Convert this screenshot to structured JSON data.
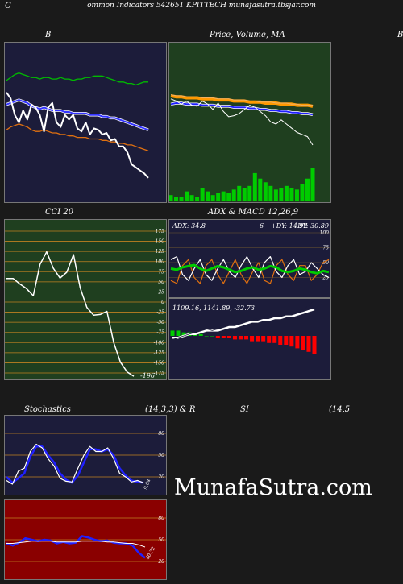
{
  "header": {
    "prefix": "C",
    "text": "ommon  Indicators 542651 KPITTECH munafasutra.tbsjar.com"
  },
  "panels": {
    "bollinger": {
      "title": "B"
    },
    "price_ma": {
      "title": "Price,  Volume,  MA"
    },
    "far_right": {
      "title": "B"
    },
    "cci": {
      "title": "CCI 20"
    },
    "adx_macd": {
      "title": "ADX  & MACD 12,26,9"
    },
    "stochastics": {
      "title": "Stochastics",
      "params": "(14,3,3) & R"
    },
    "rsi": {
      "title": "SI",
      "params": "(14,5"
    }
  },
  "watermark": "MunafaSutra.com",
  "colors": {
    "navy_bg": "#1c1c3a",
    "green_bg": "#1f3f1f",
    "red_bg": "#8a0000",
    "orange": "#e08020",
    "blue": "#1a1aff",
    "bright_green": "#00cc00"
  },
  "chart_data": [
    {
      "type": "line",
      "name": "bollinger",
      "series": [
        {
          "values": [
            78,
            80,
            82,
            83,
            82,
            81,
            80,
            80,
            79,
            80,
            80,
            79,
            79,
            80,
            79,
            79,
            78,
            79,
            79,
            80,
            80,
            81,
            81,
            81,
            80,
            79,
            78,
            77,
            77,
            76,
            76,
            75,
            76,
            77,
            77
          ]
        },
        {
          "values": [
            62,
            63,
            64,
            65,
            64,
            63,
            61,
            60,
            59,
            60,
            59,
            58,
            58,
            58,
            57,
            57,
            56,
            56,
            56,
            56,
            55,
            55,
            55,
            54,
            54,
            53,
            53,
            52,
            51,
            50,
            49,
            48,
            47,
            46,
            45
          ]
        },
        {
          "values": [
            45,
            47,
            48,
            49,
            48,
            47,
            45,
            44,
            44,
            45,
            44,
            43,
            43,
            42,
            42,
            41,
            41,
            40,
            40,
            40,
            39,
            39,
            39,
            38,
            38,
            37,
            37,
            36,
            36,
            35,
            35,
            34,
            33,
            32,
            31
          ]
        },
        {
          "values": [
            70,
            66,
            55,
            50,
            58,
            52,
            62,
            60,
            55,
            44,
            60,
            63,
            50,
            47,
            55,
            52,
            55,
            46,
            44,
            50,
            42,
            46,
            45,
            42,
            43,
            38,
            39,
            34,
            34,
            30,
            22,
            20,
            18,
            16,
            13
          ]
        }
      ],
      "ylim": [
        0,
        100
      ]
    },
    {
      "type": "bar",
      "name": "price_volume_ma",
      "series": [
        {
          "values": [
            54,
            52,
            49,
            52,
            48,
            47,
            52,
            49,
            44,
            50,
            42,
            37,
            38,
            40,
            44,
            48,
            46,
            42,
            38,
            32,
            30,
            34,
            30,
            26,
            22,
            20,
            18,
            10
          ]
        },
        {
          "values": [
            57,
            56,
            56,
            55,
            55,
            55,
            54,
            54,
            54,
            53,
            53,
            53,
            52,
            52,
            52,
            51,
            51,
            51,
            50,
            50,
            50,
            49,
            49,
            49,
            48,
            48,
            48,
            47
          ]
        },
        {
          "values": [
            58,
            57,
            57,
            56,
            56,
            56,
            55,
            55,
            55,
            54,
            54,
            54,
            53,
            53,
            53,
            52,
            52,
            51,
            51,
            51,
            50,
            50,
            50,
            49,
            49,
            48,
            48,
            48
          ]
        },
        {
          "values": [
            49,
            50,
            50,
            49,
            49,
            49,
            48,
            48,
            48,
            47,
            47,
            47,
            46,
            46,
            46,
            45,
            45,
            44,
            44,
            43,
            43,
            42,
            42,
            41,
            41,
            40,
            40,
            39
          ]
        }
      ],
      "volume": [
        3,
        2,
        2,
        5,
        3,
        2,
        7,
        5,
        3,
        4,
        5,
        4,
        6,
        8,
        7,
        8,
        15,
        12,
        10,
        8,
        6,
        7,
        8,
        7,
        6,
        9,
        12,
        18
      ]
    },
    {
      "type": "line",
      "name": "cci_20",
      "ylim": [
        -175,
        175
      ],
      "y_ticks": [
        "175",
        "150",
        "125",
        "100",
        "75",
        "50",
        "25",
        "0",
        "-25",
        "-50",
        "-75",
        "-100",
        "-125",
        "-150",
        "-175"
      ],
      "values": [
        54,
        54,
        40,
        28,
        10,
        90,
        122,
        80,
        55,
        70,
        115,
        30,
        -20,
        -40,
        -38,
        -30,
        -110,
        -160,
        -185,
        -196
      ],
      "last_label": "-196"
    },
    {
      "type": "line",
      "name": "adx",
      "labels": {
        "adx": "ADX: 34.8",
        "plus_di": "+DY: 14.92",
        "minus_di": "-DY: 30.89",
        "extra": "6"
      },
      "y_ticks": [
        "100",
        "75",
        "50",
        "25"
      ],
      "series": [
        {
          "values": [
            40,
            38,
            42,
            44,
            46,
            40,
            36,
            40,
            44,
            42,
            38,
            34,
            36,
            40,
            42,
            38,
            40,
            44,
            42,
            36,
            34,
            36,
            40,
            38,
            34,
            32,
            36,
            34
          ]
        },
        {
          "values": [
            55,
            60,
            30,
            20,
            40,
            55,
            30,
            20,
            40,
            55,
            35,
            25,
            45,
            60,
            40,
            25,
            50,
            60,
            35,
            25,
            45,
            55,
            30,
            35,
            50,
            40,
            30,
            25
          ]
        },
        {
          "values": [
            20,
            15,
            45,
            55,
            25,
            15,
            45,
            55,
            30,
            15,
            35,
            55,
            30,
            15,
            35,
            50,
            20,
            15,
            45,
            55,
            30,
            20,
            45,
            45,
            20,
            30,
            50,
            55
          ]
        }
      ]
    },
    {
      "type": "bar",
      "name": "macd",
      "labels": {
        "macd": "1109.16",
        "signal": "1141.89",
        "hist": "-32.73"
      },
      "macd": [
        2,
        1,
        0,
        -1,
        -2,
        -3,
        -4,
        -3,
        -4,
        -5,
        -6,
        -7,
        -8,
        -9,
        -9,
        -10,
        -10,
        -11,
        -11,
        -12,
        -12,
        -13,
        -14,
        -15,
        -17,
        -20
      ],
      "signal": [
        1,
        1,
        0,
        -1,
        -1,
        -2,
        -3,
        -3,
        -3,
        -4,
        -5,
        -5,
        -6,
        -7,
        -8,
        -8,
        -9,
        -9,
        -10,
        -10,
        -11,
        -11,
        -12,
        -13,
        -14,
        -15
      ],
      "hist": [
        3,
        3,
        2,
        2,
        1,
        1,
        0,
        0,
        -1,
        -1,
        -1,
        -2,
        -2,
        -2,
        -3,
        -3,
        -3,
        -4,
        -4,
        -5,
        -5,
        -6,
        -7,
        -8,
        -9,
        -10
      ]
    },
    {
      "type": "line",
      "name": "stochastics",
      "ylim": [
        0,
        100
      ],
      "y_ticks": [
        "80",
        "50",
        "20"
      ],
      "series": [
        {
          "values": [
            15,
            10,
            28,
            32,
            55,
            65,
            60,
            45,
            35,
            18,
            14,
            13,
            32,
            50,
            62,
            55,
            55,
            60,
            45,
            25,
            20,
            13,
            15,
            12
          ]
        },
        {
          "values": [
            20,
            12,
            18,
            25,
            48,
            62,
            62,
            50,
            40,
            25,
            16,
            12,
            22,
            40,
            58,
            58,
            55,
            58,
            50,
            32,
            22,
            15,
            13,
            12
          ]
        }
      ],
      "last_label": "9.64"
    },
    {
      "type": "line",
      "name": "rsi",
      "ylim": [
        0,
        100
      ],
      "y_ticks": [
        "80",
        "50",
        "20"
      ],
      "series": [
        {
          "values": [
            45,
            42,
            46,
            52,
            50,
            48,
            50,
            49,
            45,
            47,
            45,
            46,
            55,
            53,
            50,
            48,
            49,
            46,
            45,
            45,
            42,
            32,
            25
          ]
        },
        {
          "values": [
            45,
            45,
            46,
            47,
            48,
            48,
            48,
            48,
            47,
            47,
            47,
            47,
            48,
            48,
            48,
            48,
            47,
            47,
            46,
            45,
            45,
            43,
            40
          ]
        }
      ],
      "last_label": "40.72"
    }
  ]
}
